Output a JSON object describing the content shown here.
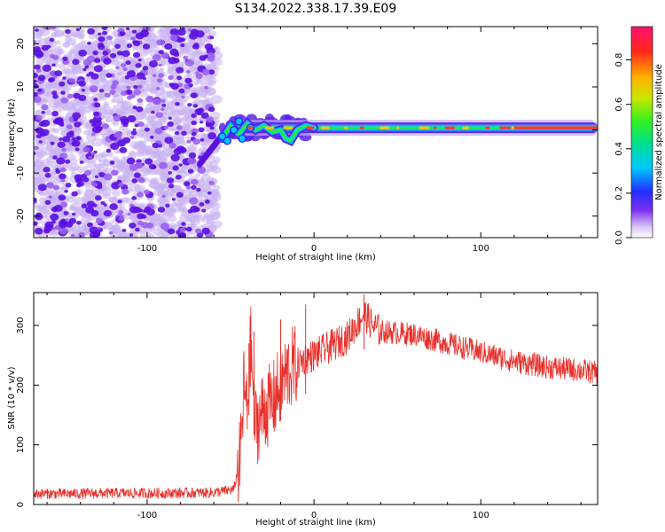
{
  "title": "S134.2022.338.17.39.E09",
  "colors": {
    "snr_line": "#e8302b",
    "signal_core": "#ff3a3a",
    "noise_dark": "#5a10e0",
    "noise_light": "#c9b0f2"
  },
  "chart_data": [
    {
      "type": "heatmap",
      "title": "S134.2022.338.17.39.E09",
      "xlabel": "Height of straight line (km)",
      "ylabel": "Frequency (Hz)",
      "xlim": [
        -168,
        170
      ],
      "ylim": [
        -25,
        24
      ],
      "xticks": [
        -100,
        0,
        100
      ],
      "xtick_labels": [
        "-100",
        "0",
        "100"
      ],
      "yticks": [
        -20,
        -10,
        0,
        10,
        20
      ],
      "ytick_labels": [
        "-20",
        "-10",
        "0",
        "10",
        "20"
      ],
      "colorbar": {
        "label": "Normalized spectral amplitude",
        "range": [
          0,
          0.95
        ],
        "ticks": [
          0,
          0.2,
          0.4,
          0.6,
          0.8
        ],
        "tick_labels": [
          "0.0",
          "0.2",
          "0.4",
          "0.6",
          "0.8"
        ],
        "colormap": "rainbow (white-violet-blue-cyan-green-yellow-red-magenta)"
      },
      "regions": [
        {
          "x_range": [
            -168,
            -58
          ],
          "description_freq_range": [
            -25,
            24
          ],
          "amplitude_range": [
            0.0,
            0.15
          ]
        },
        {
          "x_range": [
            -58,
            170
          ],
          "freq_center": 0.5,
          "amplitude_range": [
            0.3,
            0.9
          ]
        }
      ],
      "grid": false
    },
    {
      "type": "line",
      "xlabel": "Height of straight line (km)",
      "ylabel": "SNR (10 * v/v)",
      "xlim": [
        -168,
        170
      ],
      "ylim": [
        0,
        355
      ],
      "xticks": [
        -100,
        0,
        100
      ],
      "xtick_labels": [
        "-100",
        "0",
        "100"
      ],
      "yticks": [
        0,
        100,
        200,
        300
      ],
      "ytick_labels": [
        "0",
        "100",
        "200",
        "300"
      ],
      "x": [
        -168,
        -150,
        -120,
        -90,
        -60,
        -48,
        -44,
        -42,
        -40,
        -38,
        -35,
        -30,
        -25,
        -20,
        -15,
        -10,
        -5,
        0,
        10,
        20,
        30,
        35,
        40,
        60,
        80,
        100,
        120,
        140,
        160,
        170
      ],
      "values": [
        18,
        18,
        19,
        19,
        20,
        25,
        80,
        200,
        150,
        270,
        130,
        160,
        170,
        200,
        225,
        235,
        245,
        250,
        265,
        280,
        320,
        300,
        290,
        285,
        270,
        255,
        240,
        230,
        225,
        220
      ],
      "grid": false
    }
  ]
}
